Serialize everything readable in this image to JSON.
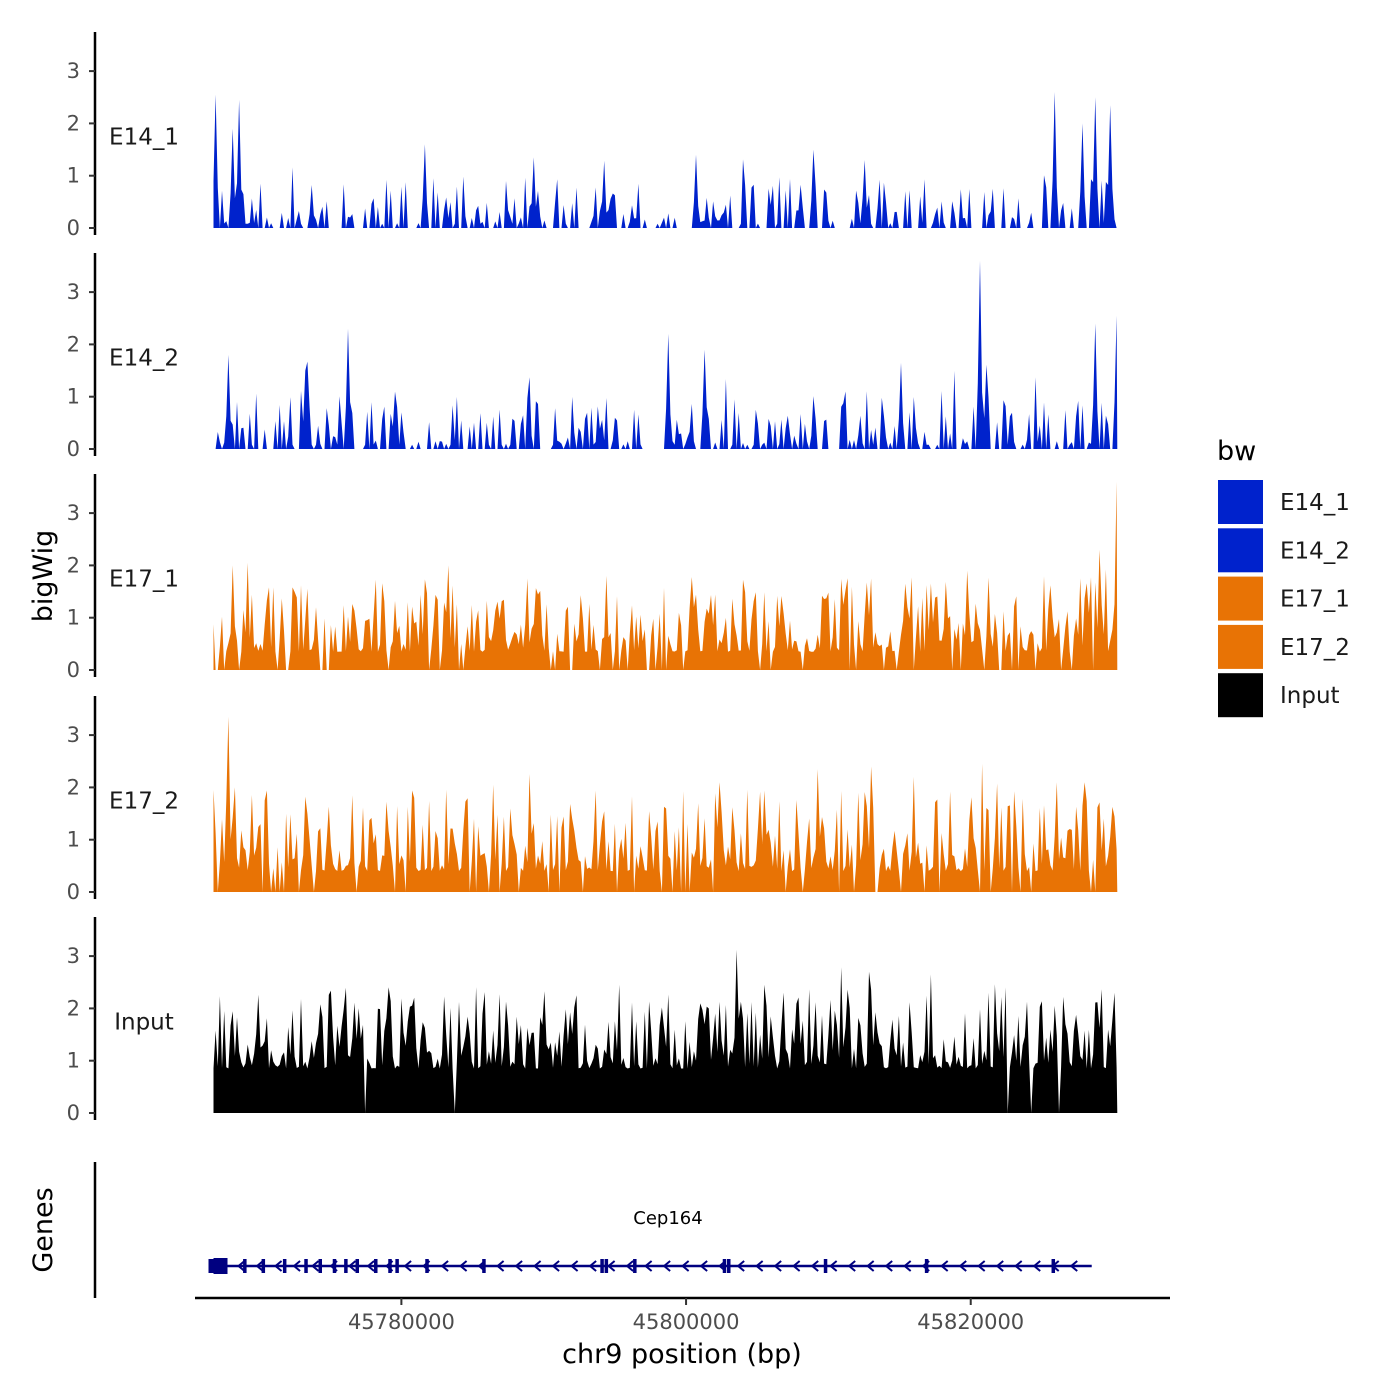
{
  "chart_data": {
    "type": "area",
    "ylabel": "bigWig",
    "xlabel": "chr9 position (bp)",
    "genes_label": "Genes",
    "ylim": [
      0,
      3.7
    ],
    "yticks": [
      "0",
      "1",
      "2",
      "3"
    ],
    "xrange": [
      45765500,
      45834000
    ],
    "xticks": [
      {
        "value": 45780000,
        "label": "45780000"
      },
      {
        "value": 45800000,
        "label": "45800000"
      },
      {
        "value": 45820000,
        "label": "45820000"
      }
    ],
    "data_range": [
      45766800,
      45830300
    ],
    "bin_size": 150,
    "series": [
      {
        "name": "E14_1",
        "color": "#0022CC",
        "seed": 11,
        "base": 0.08,
        "noise": 0.35,
        "sparsity": 0.55,
        "peaks": [
          [
            45767000,
            2.55
          ],
          [
            45768600,
            2.45
          ],
          [
            45768200,
            1.9
          ],
          [
            45781700,
            1.6
          ],
          [
            45800700,
            1.4
          ],
          [
            45808900,
            1.5
          ],
          [
            45825900,
            2.6
          ],
          [
            45827900,
            2.0
          ],
          [
            45828700,
            2.5
          ],
          [
            45829800,
            2.35
          ],
          [
            45789300,
            1.35
          ],
          [
            45812500,
            1.3
          ]
        ]
      },
      {
        "name": "E14_2",
        "color": "#0022CC",
        "seed": 23,
        "base": 0.08,
        "noise": 0.4,
        "sparsity": 0.5,
        "peaks": [
          [
            45767900,
            1.8
          ],
          [
            45776300,
            2.3
          ],
          [
            45798800,
            2.2
          ],
          [
            45820700,
            3.6
          ],
          [
            45828700,
            2.4
          ],
          [
            45830200,
            2.55
          ],
          [
            45801300,
            1.9
          ],
          [
            45815100,
            1.65
          ],
          [
            45773200,
            1.5
          ]
        ]
      },
      {
        "name": "E17_1",
        "color": "#E87305",
        "seed": 37,
        "base": 0.35,
        "noise": 0.55,
        "sparsity": 0.12,
        "peaks": [
          [
            45768100,
            2.0
          ],
          [
            45769200,
            2.05
          ],
          [
            45783300,
            2.0
          ],
          [
            45829000,
            2.3
          ],
          [
            45830200,
            3.6
          ],
          [
            45819800,
            1.9
          ],
          [
            45794400,
            1.8
          ],
          [
            45788900,
            1.75
          ]
        ]
      },
      {
        "name": "E17_2",
        "color": "#E87305",
        "seed": 41,
        "base": 0.4,
        "noise": 0.6,
        "sparsity": 0.12,
        "peaks": [
          [
            45767800,
            3.35
          ],
          [
            45768300,
            2.0
          ],
          [
            45809300,
            2.35
          ],
          [
            45813000,
            2.4
          ],
          [
            45816000,
            2.2
          ],
          [
            45826100,
            2.1
          ],
          [
            45828000,
            2.1
          ],
          [
            45802300,
            2.1
          ],
          [
            45786500,
            2.05
          ],
          [
            45776600,
            1.85
          ]
        ]
      },
      {
        "name": "Input",
        "color": "#000000",
        "seed": 53,
        "base": 0.85,
        "noise": 0.6,
        "sparsity": 0.02,
        "peaks": [
          [
            45812800,
            2.7
          ],
          [
            45817200,
            2.65
          ],
          [
            45821300,
            2.3
          ],
          [
            45830100,
            2.3
          ],
          [
            45825900,
            2.05
          ],
          [
            45805600,
            2.05
          ],
          [
            45767600,
            1.95
          ]
        ]
      }
    ],
    "legend": {
      "title": "bw",
      "entries": [
        {
          "label": "E14_1",
          "color": "#0022CC"
        },
        {
          "label": "E14_2",
          "color": "#0022CC"
        },
        {
          "label": "E17_1",
          "color": "#E87305"
        },
        {
          "label": "E17_2",
          "color": "#E87305"
        },
        {
          "label": "Input",
          "color": "#000000"
        }
      ]
    },
    "gene": {
      "name": "Cep164",
      "strand": "-",
      "start": 45766800,
      "end": 45828500,
      "color": "#000080",
      "exons": [
        45766800,
        45767200,
        45767600,
        45769000,
        45770300,
        45771800,
        45773300,
        45774300,
        45775300,
        45776100,
        45776900,
        45778200,
        45779200,
        45779700,
        45781800,
        45785800,
        45794100,
        45794400,
        45796400,
        45802700,
        45803000,
        45809800,
        45816900,
        45825800
      ]
    }
  }
}
